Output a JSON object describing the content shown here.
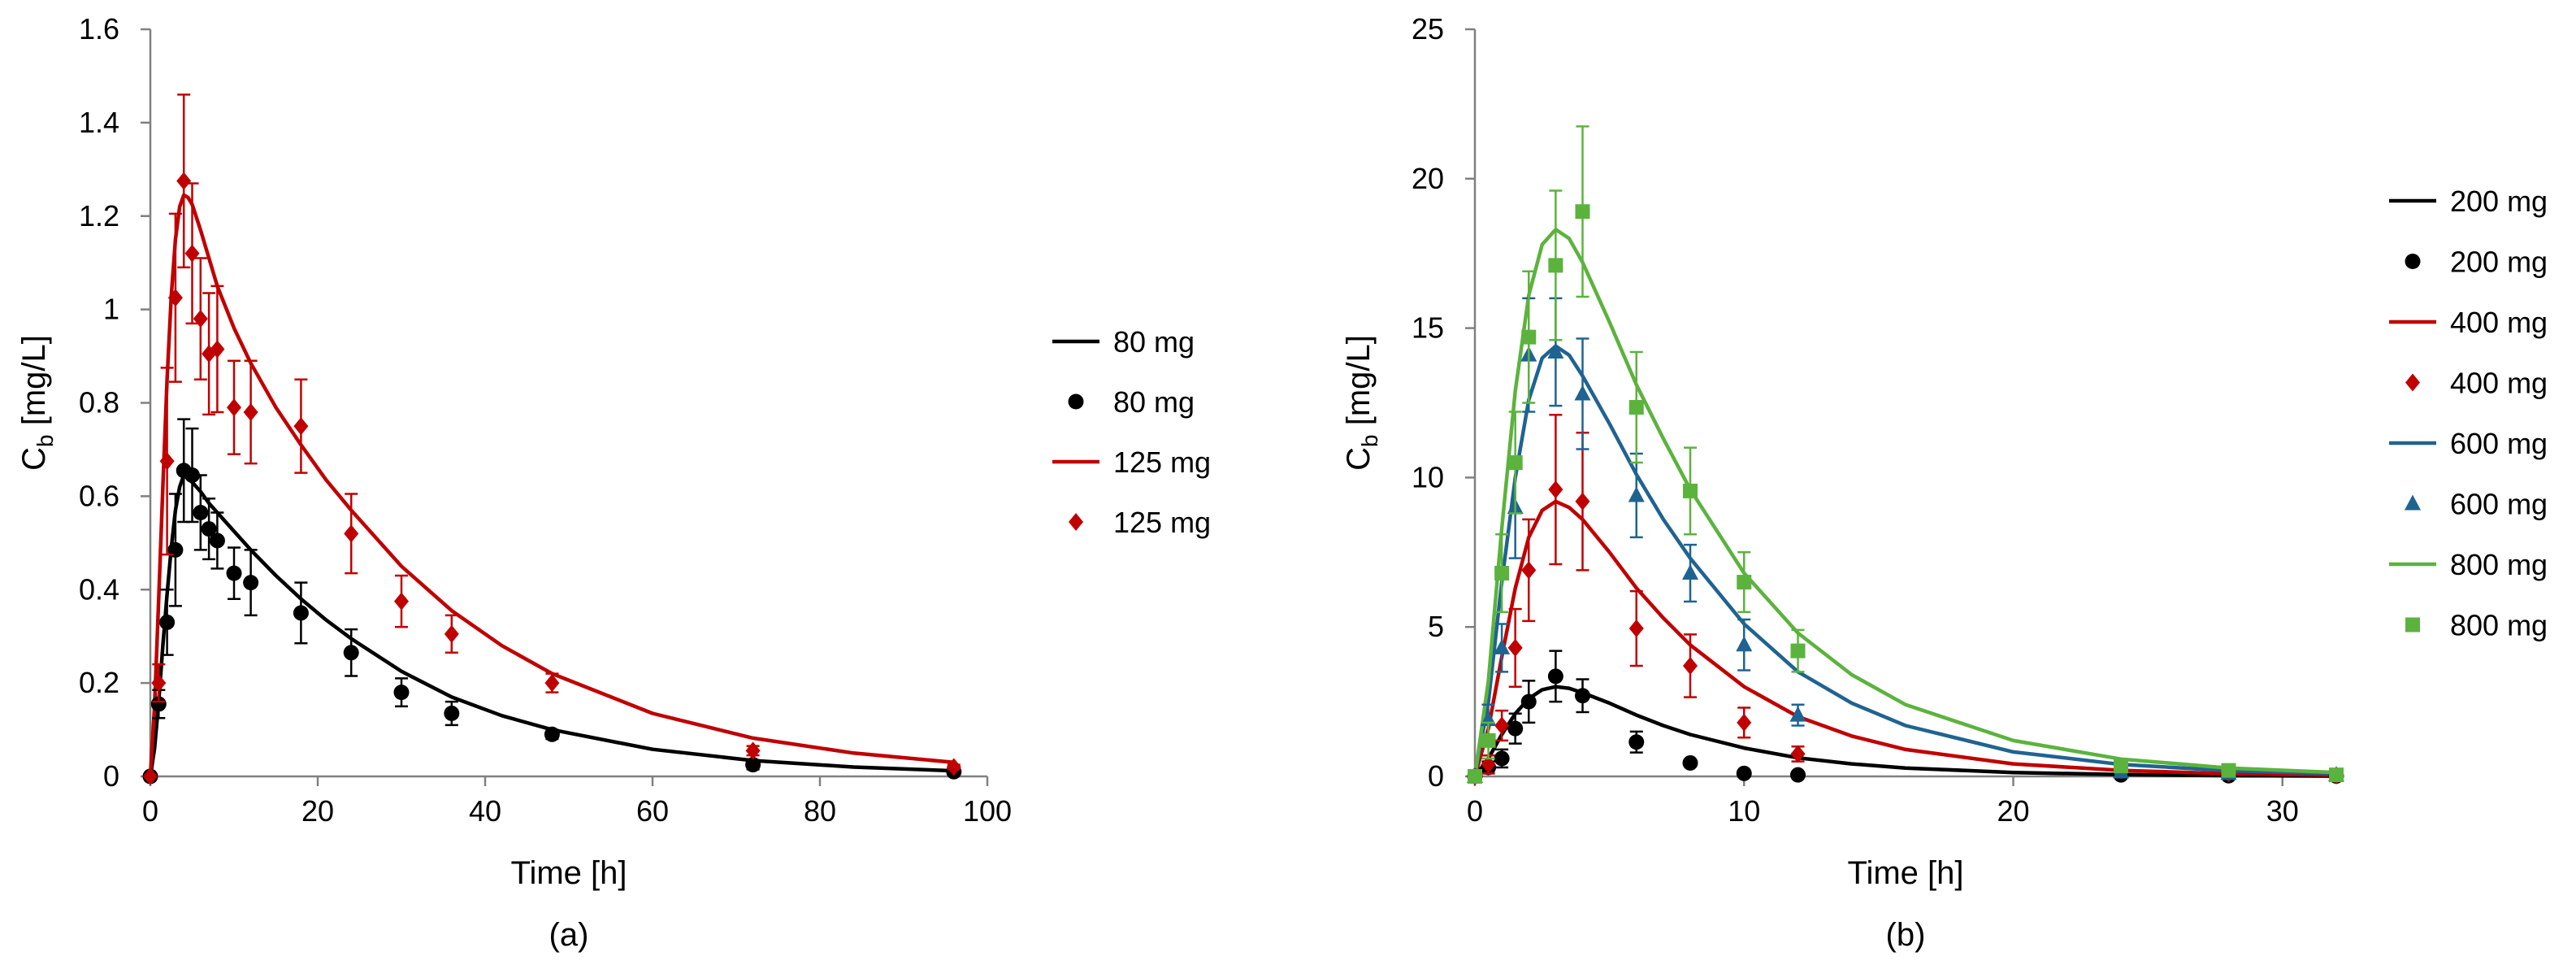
{
  "chart_data": [
    {
      "panel_id": "a",
      "type": "line",
      "caption": "(a)",
      "xlabel": "Time [h]",
      "ylabel": "C",
      "ylabel_sub": "b",
      "ylabel_unit": " [mg/L]",
      "xlim": [
        0,
        100
      ],
      "ylim": [
        0,
        1.6
      ],
      "xticks": [
        0,
        20,
        40,
        60,
        80,
        100
      ],
      "yticks": [
        0,
        0.2,
        0.4,
        0.6,
        0.8,
        1,
        1.2,
        1.4,
        1.6
      ],
      "xtick_labels": [
        "0",
        "20",
        "40",
        "60",
        "80",
        "100"
      ],
      "ytick_labels": [
        "0",
        "0.2",
        "0.4",
        "0.6",
        "0.8",
        "1",
        "1.2",
        "1.4",
        "1.6"
      ],
      "grid": false,
      "legend_position": "right",
      "legend": [
        {
          "label": "80 mg",
          "kind": "line",
          "color": "#000000"
        },
        {
          "label": "80 mg",
          "kind": "circle",
          "color": "#000000"
        },
        {
          "label": "125 mg",
          "kind": "line",
          "color": "#C00000"
        },
        {
          "label": "125 mg",
          "kind": "diamond",
          "color": "#C00000"
        }
      ],
      "model_curves": [
        {
          "name": "80 mg",
          "color": "#000000",
          "x": [
            0,
            0.5,
            1,
            1.5,
            2,
            2.5,
            3,
            3.5,
            4,
            5,
            6,
            7,
            8,
            10,
            12,
            15,
            18,
            21,
            24,
            30,
            36,
            42,
            48,
            60,
            72,
            84,
            96
          ],
          "y": [
            0,
            0.06,
            0.16,
            0.28,
            0.39,
            0.49,
            0.57,
            0.62,
            0.645,
            0.63,
            0.61,
            0.585,
            0.565,
            0.525,
            0.485,
            0.43,
            0.38,
            0.335,
            0.295,
            0.225,
            0.17,
            0.13,
            0.1,
            0.058,
            0.034,
            0.02,
            0.012
          ]
        },
        {
          "name": "125 mg",
          "color": "#C00000",
          "x": [
            0,
            0.5,
            1,
            1.5,
            2,
            2.5,
            3,
            3.5,
            4,
            4.5,
            5,
            6,
            7,
            8,
            10,
            12,
            15,
            18,
            21,
            24,
            30,
            36,
            42,
            48,
            60,
            72,
            84,
            96
          ],
          "y": [
            0,
            0.15,
            0.38,
            0.62,
            0.85,
            1.03,
            1.15,
            1.22,
            1.245,
            1.24,
            1.225,
            1.17,
            1.11,
            1.05,
            0.96,
            0.885,
            0.79,
            0.71,
            0.635,
            0.57,
            0.45,
            0.355,
            0.28,
            0.22,
            0.135,
            0.082,
            0.05,
            0.03
          ]
        }
      ],
      "observed": [
        {
          "name": "80 mg",
          "marker": "circle",
          "color": "#000000",
          "x": [
            0,
            1,
            2,
            3,
            4,
            5,
            6,
            7,
            8,
            10,
            12,
            18,
            24,
            30,
            36,
            48,
            72,
            96
          ],
          "y": [
            0,
            0.155,
            0.33,
            0.485,
            0.655,
            0.645,
            0.565,
            0.53,
            0.505,
            0.435,
            0.415,
            0.35,
            0.265,
            0.18,
            0.135,
            0.09,
            0.025,
            0.01
          ],
          "err": [
            0,
            0.03,
            0.07,
            0.12,
            0.11,
            0.1,
            0.08,
            0.065,
            0.06,
            0.055,
            0.07,
            0.065,
            0.05,
            0.03,
            0.025,
            0.01,
            0.01,
            0.005
          ]
        },
        {
          "name": "125 mg",
          "marker": "diamond",
          "color": "#C00000",
          "x": [
            0,
            1,
            2,
            3,
            4,
            5,
            6,
            7,
            8,
            10,
            12,
            18,
            24,
            30,
            36,
            48,
            72,
            96
          ],
          "y": [
            0,
            0.2,
            0.675,
            1.025,
            1.275,
            1.12,
            0.98,
            0.905,
            0.915,
            0.79,
            0.78,
            0.75,
            0.52,
            0.375,
            0.305,
            0.2,
            0.055,
            0.02
          ],
          "err": [
            0,
            0.04,
            0.2,
            0.18,
            0.185,
            0.15,
            0.13,
            0.13,
            0.135,
            0.1,
            0.11,
            0.1,
            0.085,
            0.055,
            0.04,
            0.02,
            0.01,
            0.005
          ]
        }
      ]
    },
    {
      "panel_id": "b",
      "type": "line",
      "caption": "(b)",
      "xlabel": "Time [h]",
      "ylabel": "C",
      "ylabel_sub": "b",
      "ylabel_unit": " [mg/L]",
      "xlim": [
        0,
        32
      ],
      "ylim": [
        0,
        25
      ],
      "xticks": [
        0,
        10,
        20,
        30
      ],
      "yticks": [
        0,
        5,
        10,
        15,
        20,
        25
      ],
      "xtick_labels": [
        "0",
        "10",
        "20",
        "30"
      ],
      "ytick_labels": [
        "0",
        "5",
        "10",
        "15",
        "20",
        "25"
      ],
      "grid": false,
      "legend_position": "right",
      "legend": [
        {
          "label": "200 mg",
          "kind": "line",
          "color": "#000000"
        },
        {
          "label": "200 mg",
          "kind": "circle",
          "color": "#000000"
        },
        {
          "label": "400 mg",
          "kind": "line",
          "color": "#C00000"
        },
        {
          "label": "400 mg",
          "kind": "diamond",
          "color": "#C00000"
        },
        {
          "label": "600 mg",
          "kind": "line",
          "color": "#1F6391"
        },
        {
          "label": "600 mg",
          "kind": "triangle",
          "color": "#1F6391"
        },
        {
          "label": "800 mg",
          "kind": "line",
          "color": "#5BB33D"
        },
        {
          "label": "800 mg",
          "kind": "square",
          "color": "#5BB33D"
        }
      ],
      "model_curves": [
        {
          "name": "200 mg",
          "color": "#000000",
          "x": [
            0,
            0.5,
            1,
            1.5,
            2,
            2.5,
            3,
            3.5,
            4,
            5,
            6,
            7,
            8,
            10,
            12,
            14,
            16,
            20,
            24,
            28,
            32
          ],
          "y": [
            0,
            0.6,
            1.4,
            2.1,
            2.6,
            2.9,
            3.0,
            2.95,
            2.8,
            2.45,
            2.05,
            1.7,
            1.4,
            0.95,
            0.62,
            0.42,
            0.28,
            0.13,
            0.06,
            0.025,
            0.01
          ]
        },
        {
          "name": "400 mg",
          "color": "#C00000",
          "x": [
            0,
            0.5,
            1,
            1.5,
            2,
            2.5,
            3,
            3.5,
            4,
            5,
            6,
            7,
            8,
            10,
            12,
            14,
            16,
            20,
            24,
            28,
            32
          ],
          "y": [
            0,
            1.6,
            4.0,
            6.3,
            8.0,
            8.9,
            9.2,
            9.0,
            8.6,
            7.5,
            6.3,
            5.3,
            4.4,
            3.0,
            2.0,
            1.35,
            0.9,
            0.42,
            0.2,
            0.09,
            0.04
          ]
        },
        {
          "name": "600 mg",
          "color": "#1F6391",
          "x": [
            0,
            0.5,
            1,
            1.5,
            2,
            2.5,
            3,
            3.5,
            4,
            5,
            6,
            7,
            8,
            10,
            12,
            14,
            16,
            20,
            24,
            28,
            32
          ],
          "y": [
            0,
            2.5,
            6.5,
            10.0,
            12.6,
            14.0,
            14.4,
            14.1,
            13.4,
            11.8,
            10.1,
            8.6,
            7.3,
            5.1,
            3.5,
            2.45,
            1.7,
            0.82,
            0.4,
            0.19,
            0.09
          ]
        },
        {
          "name": "800 mg",
          "color": "#5BB33D",
          "x": [
            0,
            0.5,
            1,
            1.5,
            2,
            2.5,
            3,
            3.5,
            4,
            5,
            6,
            7,
            8,
            10,
            12,
            14,
            16,
            20,
            24,
            28,
            32
          ],
          "y": [
            0,
            3.2,
            8.3,
            12.9,
            16.1,
            17.8,
            18.3,
            18.0,
            17.2,
            15.2,
            13.1,
            11.3,
            9.6,
            6.8,
            4.8,
            3.4,
            2.4,
            1.2,
            0.58,
            0.28,
            0.13
          ]
        }
      ],
      "observed": [
        {
          "name": "200 mg",
          "marker": "circle",
          "color": "#000000",
          "x": [
            0,
            0.5,
            1,
            1.5,
            2,
            3,
            4,
            6,
            8,
            10,
            12,
            24,
            28,
            32
          ],
          "y": [
            0,
            0.3,
            0.6,
            1.6,
            2.5,
            3.35,
            2.7,
            1.15,
            0.45,
            0.1,
            0.05,
            0.05,
            0.02,
            0.01
          ],
          "err": [
            0,
            0.2,
            0.3,
            0.5,
            0.7,
            0.85,
            0.55,
            0.35,
            0.1,
            0.05,
            0.03,
            0.02,
            0.01,
            0.005
          ]
        },
        {
          "name": "400 mg",
          "marker": "diamond",
          "color": "#C00000",
          "x": [
            0,
            0.5,
            1,
            1.5,
            2,
            3,
            4,
            6,
            8,
            10,
            12,
            24,
            28,
            32
          ],
          "y": [
            0,
            0.4,
            1.7,
            4.3,
            6.9,
            9.6,
            9.2,
            4.95,
            3.7,
            1.8,
            0.75,
            0.2,
            0.1,
            0.03
          ],
          "err": [
            0,
            0.3,
            0.5,
            1.3,
            1.7,
            2.5,
            2.3,
            1.25,
            1.05,
            0.5,
            0.25,
            0.05,
            0.03,
            0.01
          ]
        },
        {
          "name": "600 mg",
          "marker": "triangle",
          "color": "#1F6391",
          "x": [
            0,
            0.5,
            1,
            1.5,
            2,
            3,
            4,
            6,
            8,
            10,
            12,
            24,
            28,
            32
          ],
          "y": [
            0,
            1.9,
            4.3,
            9.0,
            14.1,
            14.2,
            12.8,
            9.4,
            6.8,
            4.4,
            2.05,
            0.15,
            0.1,
            0.05
          ],
          "err": [
            0,
            0.5,
            0.8,
            1.7,
            1.9,
            1.8,
            1.85,
            1.4,
            0.95,
            0.85,
            0.35,
            0.05,
            0.03,
            0.01
          ]
        },
        {
          "name": "800 mg",
          "marker": "square",
          "color": "#5BB33D",
          "x": [
            0,
            0.5,
            1,
            1.5,
            2,
            3,
            4,
            6,
            8,
            10,
            12,
            24,
            28,
            32
          ],
          "y": [
            0,
            1.2,
            6.8,
            10.5,
            14.7,
            17.1,
            18.9,
            12.35,
            9.55,
            6.5,
            4.2,
            0.35,
            0.2,
            0.05
          ],
          "err": [
            0,
            0.6,
            1.3,
            1.7,
            2.2,
            2.5,
            2.85,
            1.85,
            1.45,
            1.0,
            0.7,
            0.1,
            0.05,
            0.02
          ]
        }
      ]
    }
  ]
}
